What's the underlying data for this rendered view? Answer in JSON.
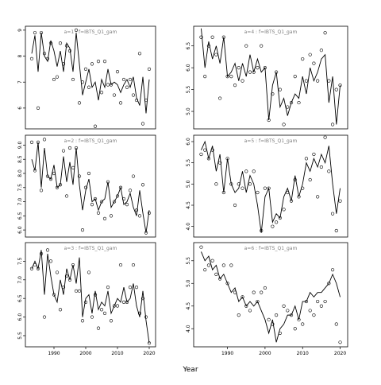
{
  "xlabel": "Year",
  "chart_data": [
    {
      "type": "line",
      "title": "a=1  :  f=IBTS_Q1_gam",
      "x": [
        1983,
        1984,
        1985,
        1986,
        1987,
        1988,
        1989,
        1990,
        1991,
        1992,
        1993,
        1994,
        1995,
        1996,
        1997,
        1998,
        1999,
        2000,
        2001,
        2002,
        2003,
        2004,
        2005,
        2006,
        2007,
        2008,
        2009,
        2010,
        2011,
        2012,
        2013,
        2014,
        2015,
        2016,
        2017,
        2018,
        2019,
        2020
      ],
      "xlim": [
        1981,
        2022
      ],
      "ylim": [
        5.2,
        9.15
      ],
      "yticks": [
        6,
        7,
        8,
        9
      ],
      "series": [
        {
          "style": "line",
          "color": "#000000",
          "values": [
            8.1,
            8.8,
            7.4,
            8.9,
            8.0,
            7.8,
            8.6,
            8.2,
            7.6,
            8.2,
            7.4,
            8.5,
            8.3,
            7.4,
            8.9,
            7.7,
            6.5,
            7.0,
            7.5,
            6.8,
            7.0,
            6.3,
            7.1,
            6.8,
            7.5,
            6.9,
            7.0,
            6.9,
            6.6,
            6.9,
            7.1,
            6.8,
            7.2,
            6.4,
            6.1,
            7.2,
            5.8,
            7.1
          ]
        },
        {
          "style": "points",
          "color": "#000000",
          "values": [
            7.9,
            8.9,
            6.0,
            8.9,
            8.1,
            7.9,
            8.5,
            7.1,
            7.2,
            8.5,
            7.7,
            8.4,
            8.2,
            7.1,
            9.0,
            6.2,
            7.0,
            7.5,
            6.8,
            7.7,
            5.3,
            7.8,
            6.6,
            7.8,
            6.9,
            6.9,
            6.5,
            7.4,
            6.2,
            7.1,
            6.8,
            7.1,
            6.5,
            6.3,
            8.1,
            5.4,
            6.3,
            7.5
          ]
        }
      ]
    },
    {
      "type": "line",
      "title": "a=4  :  f=IBTS_Q1_gam",
      "x": [
        1983,
        1984,
        1985,
        1986,
        1987,
        1988,
        1989,
        1990,
        1991,
        1992,
        1993,
        1994,
        1995,
        1996,
        1997,
        1998,
        1999,
        2000,
        2001,
        2002,
        2003,
        2004,
        2005,
        2006,
        2007,
        2008,
        2009,
        2010,
        2011,
        2012,
        2013,
        2014,
        2015,
        2016,
        2017,
        2018,
        2019,
        2020
      ],
      "xlim": [
        1981,
        2022
      ],
      "ylim": [
        4.6,
        6.95
      ],
      "yticks": [
        {
          "value": 5,
          "label": "5.0"
        },
        5.5,
        {
          "value": 6,
          "label": "6.0"
        },
        6.5
      ],
      "series": [
        {
          "style": "line",
          "color": "#000000",
          "values": [
            6.9,
            6.0,
            6.6,
            6.2,
            6.5,
            6.1,
            6.7,
            5.8,
            5.9,
            6.1,
            5.7,
            6.1,
            5.8,
            6.3,
            5.9,
            6.2,
            5.9,
            6.0,
            4.8,
            5.6,
            5.9,
            5.1,
            5.3,
            4.9,
            5.2,
            5.4,
            5.3,
            5.8,
            5.4,
            6.0,
            5.7,
            5.9,
            6.2,
            6.3,
            5.2,
            5.8,
            4.7,
            5.6
          ]
        },
        {
          "style": "points",
          "color": "#000000",
          "values": [
            6.7,
            5.8,
            6.5,
            6.7,
            6.3,
            5.3,
            6.7,
            5.8,
            5.8,
            5.6,
            6.0,
            5.7,
            6.5,
            5.9,
            5.9,
            6.0,
            6.5,
            6.0,
            4.8,
            5.4,
            5.9,
            5.5,
            4.7,
            5.1,
            5.2,
            5.8,
            5.2,
            6.2,
            5.7,
            6.3,
            6.1,
            5.7,
            6.4,
            6.8,
            5.7,
            4.7,
            5.5,
            5.6
          ]
        }
      ]
    },
    {
      "type": "line",
      "title": "a=2  :  f=IBTS_Q1_gam",
      "x": [
        1983,
        1984,
        1985,
        1986,
        1987,
        1988,
        1989,
        1990,
        1991,
        1992,
        1993,
        1994,
        1995,
        1996,
        1997,
        1998,
        1999,
        2000,
        2001,
        2002,
        2003,
        2004,
        2005,
        2006,
        2007,
        2008,
        2009,
        2010,
        2011,
        2012,
        2013,
        2014,
        2015,
        2016,
        2017,
        2018,
        2019,
        2020
      ],
      "xlim": [
        1981,
        2022
      ],
      "ylim": [
        5.75,
        9.35
      ],
      "yticks": [
        {
          "value": 6,
          "label": "6.0"
        },
        6.5,
        {
          "value": 7,
          "label": "7.0"
        },
        7.5,
        {
          "value": 8,
          "label": "8.0"
        },
        8.5,
        {
          "value": 9,
          "label": "9.0"
        }
      ],
      "series": [
        {
          "style": "line",
          "color": "#000000",
          "values": [
            8.5,
            8.1,
            9.1,
            7.5,
            8.9,
            7.9,
            7.8,
            8.3,
            7.5,
            7.6,
            8.6,
            7.7,
            8.4,
            7.6,
            8.9,
            7.6,
            6.7,
            7.4,
            7.8,
            7.0,
            7.1,
            6.7,
            7.0,
            7.1,
            7.7,
            6.8,
            7.0,
            7.2,
            7.5,
            6.9,
            7.0,
            7.3,
            6.8,
            6.5,
            7.4,
            6.6,
            5.9,
            6.7
          ]
        },
        {
          "style": "points",
          "color": "#000000",
          "values": [
            9.1,
            8.1,
            9.1,
            7.4,
            9.2,
            7.9,
            7.8,
            8.0,
            7.5,
            7.6,
            8.8,
            7.2,
            8.9,
            8.2,
            8.9,
            7.9,
            6.0,
            7.5,
            8.0,
            6.9,
            7.1,
            6.6,
            7.0,
            6.4,
            7.7,
            6.5,
            7.0,
            7.2,
            7.5,
            7.1,
            6.9,
            7.4,
            7.9,
            6.7,
            6.5,
            7.6,
            5.9,
            6.6
          ]
        }
      ]
    },
    {
      "type": "line",
      "title": "a=5  :  f=IBTS_Q1_gam",
      "x": [
        1983,
        1984,
        1985,
        1986,
        1987,
        1988,
        1989,
        1990,
        1991,
        1992,
        1993,
        1994,
        1995,
        1996,
        1997,
        1998,
        1999,
        2000,
        2001,
        2002,
        2003,
        2004,
        2005,
        2006,
        2007,
        2008,
        2009,
        2010,
        2011,
        2012,
        2013,
        2014,
        2015,
        2016,
        2017,
        2018,
        2019,
        2020
      ],
      "xlim": [
        1981,
        2022
      ],
      "ylim": [
        3.75,
        6.15
      ],
      "yticks": [
        {
          "value": 4,
          "label": "4.0"
        },
        4.5,
        {
          "value": 5,
          "label": "5.0"
        },
        5.5,
        {
          "value": 6,
          "label": "6.0"
        }
      ],
      "series": [
        {
          "style": "line",
          "color": "#000000",
          "values": [
            5.8,
            6.0,
            5.6,
            5.9,
            5.3,
            5.7,
            4.8,
            5.6,
            5.0,
            4.8,
            4.9,
            5.3,
            4.8,
            5.2,
            5.0,
            4.5,
            3.85,
            4.7,
            4.9,
            4.1,
            4.3,
            4.2,
            4.7,
            4.9,
            4.6,
            5.2,
            4.7,
            5.0,
            5.5,
            5.3,
            5.6,
            5.4,
            5.7,
            5.5,
            5.9,
            5.0,
            4.3,
            4.9
          ]
        },
        {
          "style": "points",
          "color": "#000000",
          "values": [
            5.7,
            5.8,
            5.6,
            5.8,
            5.0,
            5.5,
            4.8,
            5.6,
            5.0,
            4.5,
            5.0,
            4.9,
            5.3,
            5.0,
            5.3,
            4.8,
            3.9,
            4.9,
            4.9,
            4.0,
            4.1,
            4.2,
            4.4,
            4.8,
            4.6,
            5.1,
            4.7,
            4.9,
            5.6,
            5.1,
            5.7,
            4.7,
            5.4,
            6.1,
            5.3,
            4.3,
            3.9,
            4.6
          ]
        }
      ]
    },
    {
      "type": "line",
      "title": "a=3  :  f=IBTS_Q1_gam",
      "x": [
        1983,
        1984,
        1985,
        1986,
        1987,
        1988,
        1989,
        1990,
        1991,
        1992,
        1993,
        1994,
        1995,
        1996,
        1997,
        1998,
        1999,
        2000,
        2001,
        2002,
        2003,
        2004,
        2005,
        2006,
        2007,
        2008,
        2009,
        2010,
        2011,
        2012,
        2013,
        2014,
        2015,
        2016,
        2017,
        2018,
        2019,
        2020
      ],
      "xlim": [
        1981,
        2022
      ],
      "ylim": [
        5.2,
        8.0
      ],
      "yticks": [
        5.5,
        {
          "value": 6,
          "label": "6.0"
        },
        6.5,
        {
          "value": 7,
          "label": "7.0"
        },
        7.5
      ],
      "xticks": [
        1990,
        2000,
        2010,
        2020
      ],
      "series": [
        {
          "style": "line",
          "color": "#000000",
          "values": [
            7.3,
            7.5,
            7.3,
            7.8,
            6.6,
            7.7,
            7.1,
            6.6,
            6.4,
            7.0,
            6.6,
            7.3,
            7.0,
            7.4,
            6.9,
            7.6,
            6.0,
            6.5,
            6.6,
            6.1,
            6.7,
            6.2,
            6.4,
            6.3,
            6.7,
            6.1,
            6.3,
            6.5,
            6.4,
            6.8,
            6.4,
            6.5,
            6.9,
            6.3,
            6.0,
            6.7,
            5.9,
            5.3
          ]
        },
        {
          "style": "points",
          "color": "#000000",
          "values": [
            7.3,
            7.4,
            7.3,
            7.7,
            6.0,
            7.8,
            7.5,
            6.6,
            7.2,
            6.2,
            6.8,
            7.1,
            7.0,
            7.4,
            6.7,
            6.7,
            5.9,
            6.4,
            7.2,
            6.0,
            6.6,
            5.7,
            6.2,
            6.1,
            6.8,
            5.9,
            6.3,
            6.3,
            7.4,
            6.4,
            6.4,
            6.8,
            7.4,
            6.8,
            6.1,
            6.5,
            6.0,
            5.3
          ]
        }
      ]
    },
    {
      "type": "line",
      "title": "a=6  :  f=IBTS_Q1_gam",
      "x": [
        1983,
        1984,
        1985,
        1986,
        1987,
        1988,
        1989,
        1990,
        1991,
        1992,
        1993,
        1994,
        1995,
        1996,
        1997,
        1998,
        1999,
        2000,
        2001,
        2002,
        2003,
        2004,
        2005,
        2006,
        2007,
        2008,
        2009,
        2010,
        2011,
        2012,
        2013,
        2014,
        2015,
        2016,
        2017,
        2018,
        2019,
        2020
      ],
      "xlim": [
        1981,
        2022
      ],
      "ylim": [
        3.6,
        5.9
      ],
      "yticks": [
        {
          "value": 4,
          "label": "4.0"
        },
        4.5,
        {
          "value": 5,
          "label": "5.0"
        },
        5.5
      ],
      "xticks": [
        1990,
        2000,
        2010,
        2020
      ],
      "series": [
        {
          "style": "line",
          "color": "#000000",
          "values": [
            5.7,
            5.5,
            5.6,
            5.3,
            5.4,
            5.1,
            5.2,
            5.0,
            4.8,
            4.9,
            4.6,
            4.7,
            4.5,
            4.6,
            4.5,
            4.6,
            4.4,
            4.2,
            3.9,
            4.2,
            3.7,
            4.0,
            4.1,
            4.3,
            4.3,
            4.5,
            4.2,
            4.6,
            4.6,
            4.8,
            4.7,
            4.8,
            4.8,
            4.9,
            5.0,
            5.2,
            5.0,
            4.7
          ]
        },
        {
          "style": "points",
          "color": "#000000",
          "values": [
            5.8,
            5.3,
            5.4,
            5.5,
            5.2,
            5.1,
            5.4,
            5.0,
            5.4,
            4.8,
            4.3,
            4.7,
            4.5,
            4.4,
            4.8,
            4.6,
            4.8,
            4.9,
            4.2,
            4.1,
            4.3,
            3.9,
            4.5,
            4.4,
            4.3,
            4.0,
            4.2,
            4.1,
            4.6,
            4.4,
            4.3,
            4.6,
            4.5,
            4.6,
            5.0,
            5.3,
            4.1,
            3.7
          ]
        }
      ]
    }
  ]
}
